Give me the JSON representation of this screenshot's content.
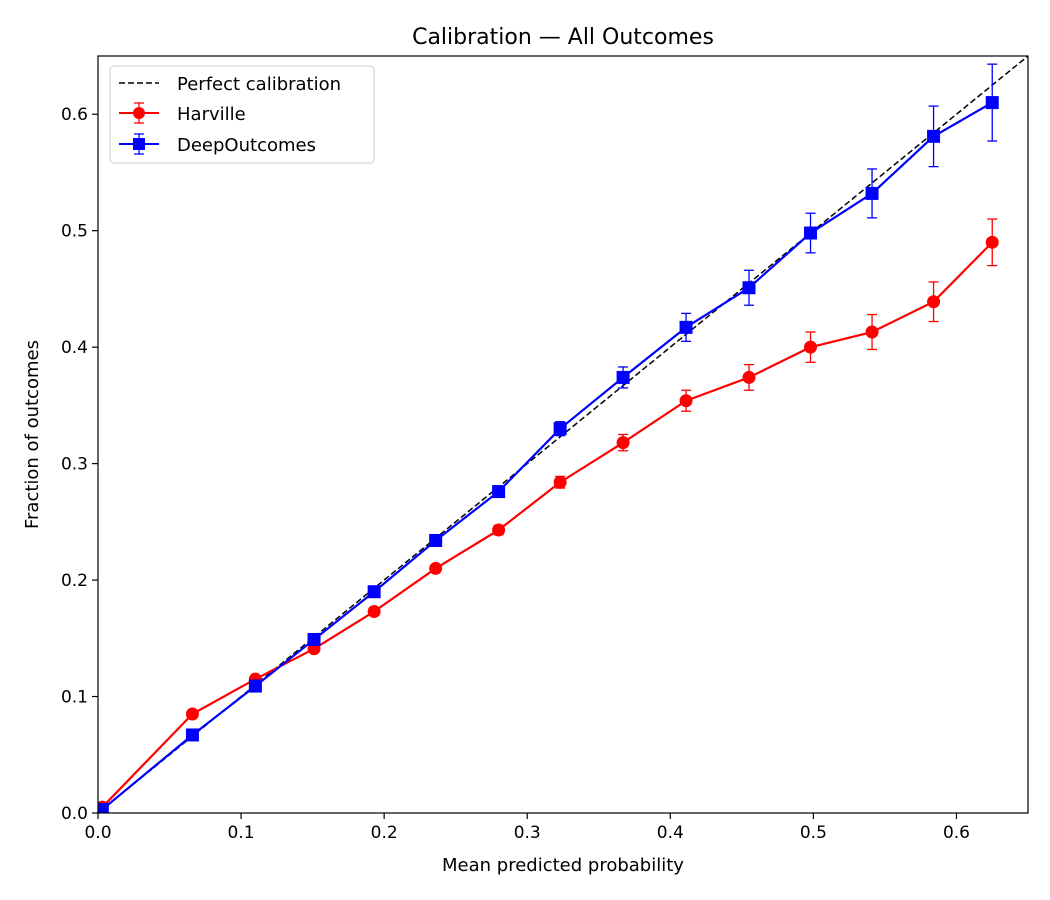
{
  "chart_data": {
    "type": "line",
    "title": "Calibration — All Outcomes",
    "xlabel": "Mean predicted probability",
    "ylabel": "Fraction of outcomes",
    "xlim": [
      0,
      0.65
    ],
    "ylim": [
      0,
      0.65
    ],
    "xticks": [
      "0.0",
      "0.1",
      "0.2",
      "0.3",
      "0.4",
      "0.5",
      "0.6"
    ],
    "yticks": [
      "0.0",
      "0.1",
      "0.2",
      "0.3",
      "0.4",
      "0.5",
      "0.6"
    ],
    "grid": false,
    "legend_position": "top-left",
    "reference_line": {
      "name": "Perfect calibration",
      "style": "dashed",
      "color": "#000000",
      "from": [
        0,
        0
      ],
      "to": [
        0.65,
        0.65
      ]
    },
    "series": [
      {
        "name": "Harville",
        "color": "#ff0000",
        "marker": "circle",
        "x": [
          0.003,
          0.066,
          0.11,
          0.151,
          0.193,
          0.236,
          0.28,
          0.323,
          0.367,
          0.411,
          0.455,
          0.498,
          0.541,
          0.584,
          0.625
        ],
        "y": [
          0.005,
          0.085,
          0.115,
          0.141,
          0.173,
          0.21,
          0.243,
          0.284,
          0.318,
          0.354,
          0.374,
          0.4,
          0.413,
          0.439,
          0.49
        ],
        "err": [
          0.0005,
          0.002,
          0.002,
          0.003,
          0.003,
          0.003,
          0.004,
          0.005,
          0.007,
          0.009,
          0.011,
          0.013,
          0.015,
          0.017,
          0.02
        ]
      },
      {
        "name": "DeepOutcomes",
        "color": "#0000ff",
        "marker": "square",
        "x": [
          0.003,
          0.066,
          0.11,
          0.151,
          0.193,
          0.236,
          0.28,
          0.323,
          0.367,
          0.411,
          0.455,
          0.498,
          0.541,
          0.584,
          0.625
        ],
        "y": [
          0.003,
          0.067,
          0.109,
          0.149,
          0.19,
          0.234,
          0.276,
          0.33,
          0.374,
          0.417,
          0.451,
          0.498,
          0.532,
          0.581,
          0.61
        ],
        "err": [
          0.0005,
          0.002,
          0.002,
          0.003,
          0.003,
          0.003,
          0.004,
          0.006,
          0.009,
          0.012,
          0.015,
          0.017,
          0.021,
          0.026,
          0.033
        ]
      }
    ]
  }
}
